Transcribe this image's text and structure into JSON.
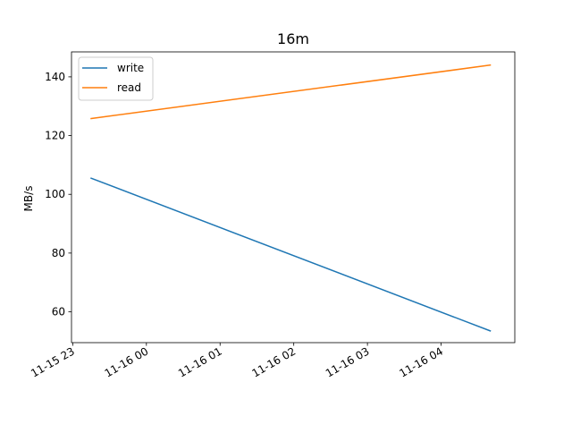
{
  "chart_data": {
    "type": "line",
    "title": "16m",
    "xlabel": "",
    "ylabel": "MB/s",
    "x": [
      "11-15 23:15",
      "11-16 04:40"
    ],
    "x_ticks": [
      "11-15 23",
      "11-16 00",
      "11-16 01",
      "11-16 02",
      "11-16 03",
      "11-16 04"
    ],
    "y_ticks": [
      60,
      80,
      100,
      120,
      140
    ],
    "xlim": [
      "11-15 22:59",
      "11-16 05:00"
    ],
    "ylim": [
      49.5,
      148.5
    ],
    "grid": false,
    "legend_position": "upper-left",
    "series": [
      {
        "name": "write",
        "color": "#1f77b4",
        "values": [
          105.5,
          53.5
        ]
      },
      {
        "name": "read",
        "color": "#ff7f0e",
        "values": [
          125.8,
          144.0
        ]
      }
    ]
  }
}
